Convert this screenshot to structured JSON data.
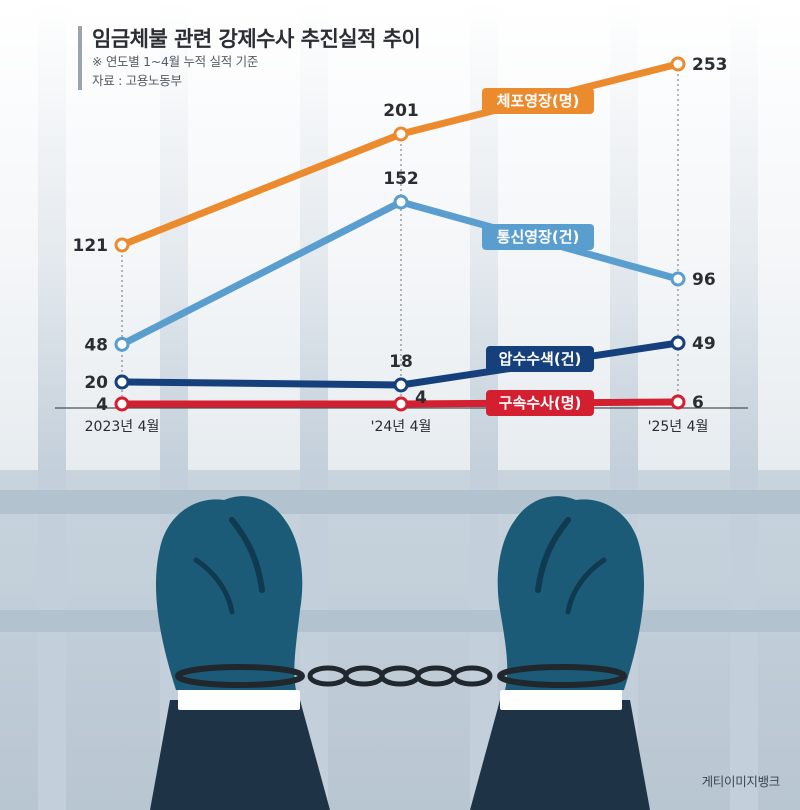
{
  "header": {
    "title": "임금체불 관련 강제수사 추진실적 추이",
    "note": "※ 연도별 1~4월 누적 실적 기준",
    "source": "자료 : 고용노동부"
  },
  "credit": "게티이미지뱅크",
  "colors": {
    "orange": "#ec8a2e",
    "light_blue": "#5a9ecf",
    "navy": "#15407c",
    "red": "#d31f2f",
    "bg_bars": "#dfe6ec"
  },
  "chart_data": {
    "type": "line",
    "title": "임금체불 관련 강제수사 추진실적 추이",
    "categories": [
      "2023년 4월",
      "'24년 4월",
      "'25년 4월"
    ],
    "series": [
      {
        "name": "체포영장(명)",
        "values": [
          121,
          201,
          253
        ],
        "color": "#ec8a2e"
      },
      {
        "name": "통신영장(건)",
        "values": [
          48,
          152,
          96
        ],
        "color": "#5a9ecf"
      },
      {
        "name": "압수수색(건)",
        "values": [
          20,
          18,
          49
        ],
        "color": "#15407c"
      },
      {
        "name": "구속수사(명)",
        "values": [
          4,
          4,
          6
        ],
        "color": "#d31f2f"
      }
    ],
    "xlabel": "",
    "ylabel": "",
    "legend": "inline labels",
    "grid": false
  },
  "illustration": {
    "subject": "handcuffed-hands-behind-bars"
  }
}
